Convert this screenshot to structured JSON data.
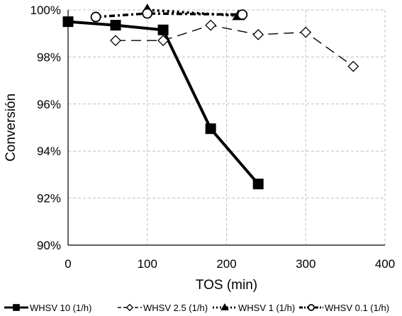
{
  "chart_data": {
    "type": "line",
    "title": "",
    "xlabel": "TOS (min)",
    "ylabel": "Conversión",
    "xlim": [
      0,
      400
    ],
    "ylim": [
      90,
      100
    ],
    "x_ticks": [
      0,
      100,
      200,
      300,
      400
    ],
    "x_tick_labels": [
      "0",
      "100",
      "200",
      "300",
      "400"
    ],
    "y_ticks": [
      90,
      92,
      94,
      96,
      98,
      100
    ],
    "y_tick_labels": [
      "90%",
      "92%",
      "94%",
      "96%",
      "98%",
      "100%"
    ],
    "grid": "dashed, both axes",
    "legend_position": "bottom",
    "series": [
      {
        "name": "WHSV 10 (1/h)",
        "marker": "square-filled",
        "line": "solid-thick",
        "color": "#000000",
        "x": [
          0,
          60,
          120,
          180,
          240
        ],
        "y": [
          99.5,
          99.35,
          99.15,
          94.95,
          92.6
        ]
      },
      {
        "name": "WHSV 2.5 (1/h)",
        "marker": "diamond-open",
        "line": "dashed",
        "color": "#000000",
        "x": [
          60,
          120,
          180,
          240,
          300,
          360
        ],
        "y": [
          98.7,
          98.7,
          99.35,
          98.95,
          99.05,
          97.6
        ]
      },
      {
        "name": "WHSV 1 (1/h)",
        "marker": "triangle-filled",
        "line": "dotted-thick",
        "color": "#000000",
        "x": [
          100,
          215
        ],
        "y": [
          100.0,
          99.75
        ]
      },
      {
        "name": "WHSV 0.1 (1/h)",
        "marker": "circle-open",
        "line": "dash-dot-thick",
        "color": "#000000",
        "x": [
          35,
          100,
          220
        ],
        "y": [
          99.7,
          99.85,
          99.8
        ]
      }
    ]
  }
}
